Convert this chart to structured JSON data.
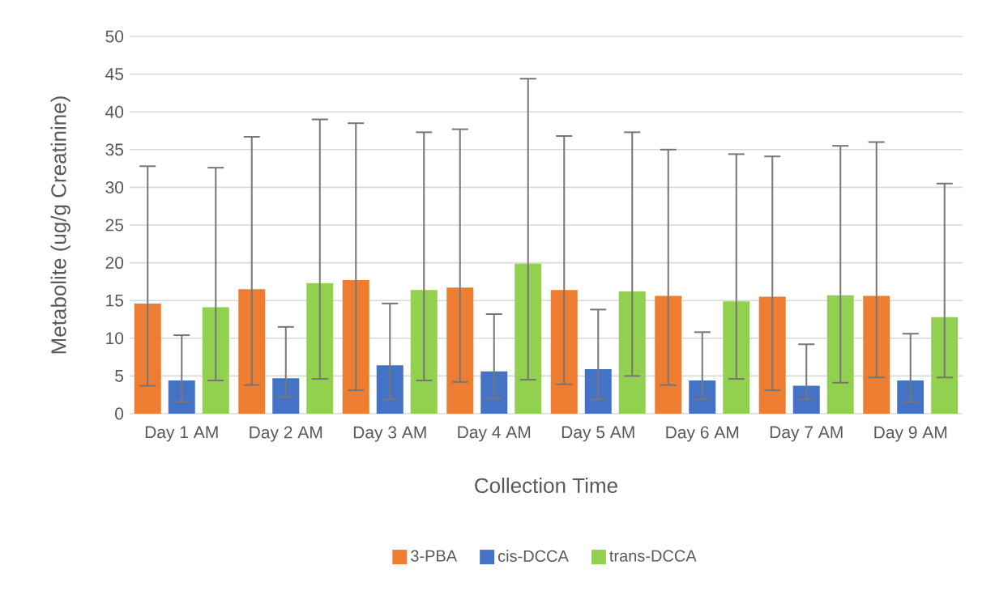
{
  "chart_data": {
    "type": "bar",
    "xlabel": "Collection Time",
    "ylabel": "Metabolite (ug/g Creatinine)",
    "categories": [
      "Day 1 AM",
      "Day 2 AM",
      "Day 3 AM",
      "Day 4 AM",
      "Day 5 AM",
      "Day 6 AM",
      "Day 7 AM",
      "Day 9 AM"
    ],
    "series": [
      {
        "name": "3-PBA",
        "color": "#ed7d31",
        "values": [
          14.6,
          16.5,
          17.7,
          16.7,
          16.4,
          15.6,
          15.5,
          15.6
        ],
        "errors": [
          [
            3.7,
            32.8
          ],
          [
            3.8,
            36.7
          ],
          [
            3.1,
            38.5
          ],
          [
            4.2,
            37.7
          ],
          [
            3.9,
            36.8
          ],
          [
            3.8,
            35.0
          ],
          [
            3.1,
            34.1
          ],
          [
            4.8,
            36.0
          ]
        ]
      },
      {
        "name": "cis-DCCA",
        "color": "#4472c4",
        "values": [
          4.4,
          4.7,
          6.4,
          5.6,
          5.9,
          4.4,
          3.7,
          4.4
        ],
        "errors": [
          [
            1.6,
            10.4
          ],
          [
            2.2,
            11.5
          ],
          [
            1.9,
            14.6
          ],
          [
            2.0,
            13.2
          ],
          [
            1.9,
            13.8
          ],
          [
            1.9,
            10.8
          ],
          [
            1.9,
            9.2
          ],
          [
            1.6,
            10.6
          ]
        ]
      },
      {
        "name": "trans-DCCA",
        "color": "#92d050",
        "values": [
          14.1,
          17.3,
          16.4,
          19.9,
          16.2,
          14.9,
          15.7,
          12.8
        ],
        "errors": [
          [
            4.4,
            32.6
          ],
          [
            4.6,
            39.0
          ],
          [
            4.4,
            37.3
          ],
          [
            4.5,
            44.4
          ],
          [
            5.0,
            37.3
          ],
          [
            4.6,
            34.4
          ],
          [
            4.1,
            35.5
          ],
          [
            4.8,
            30.5
          ]
        ]
      }
    ],
    "ylim": [
      0,
      50
    ],
    "yticks": [
      0,
      5,
      10,
      15,
      20,
      25,
      30,
      35,
      40,
      45,
      50
    ],
    "grid": "y",
    "legend": "bottom"
  }
}
